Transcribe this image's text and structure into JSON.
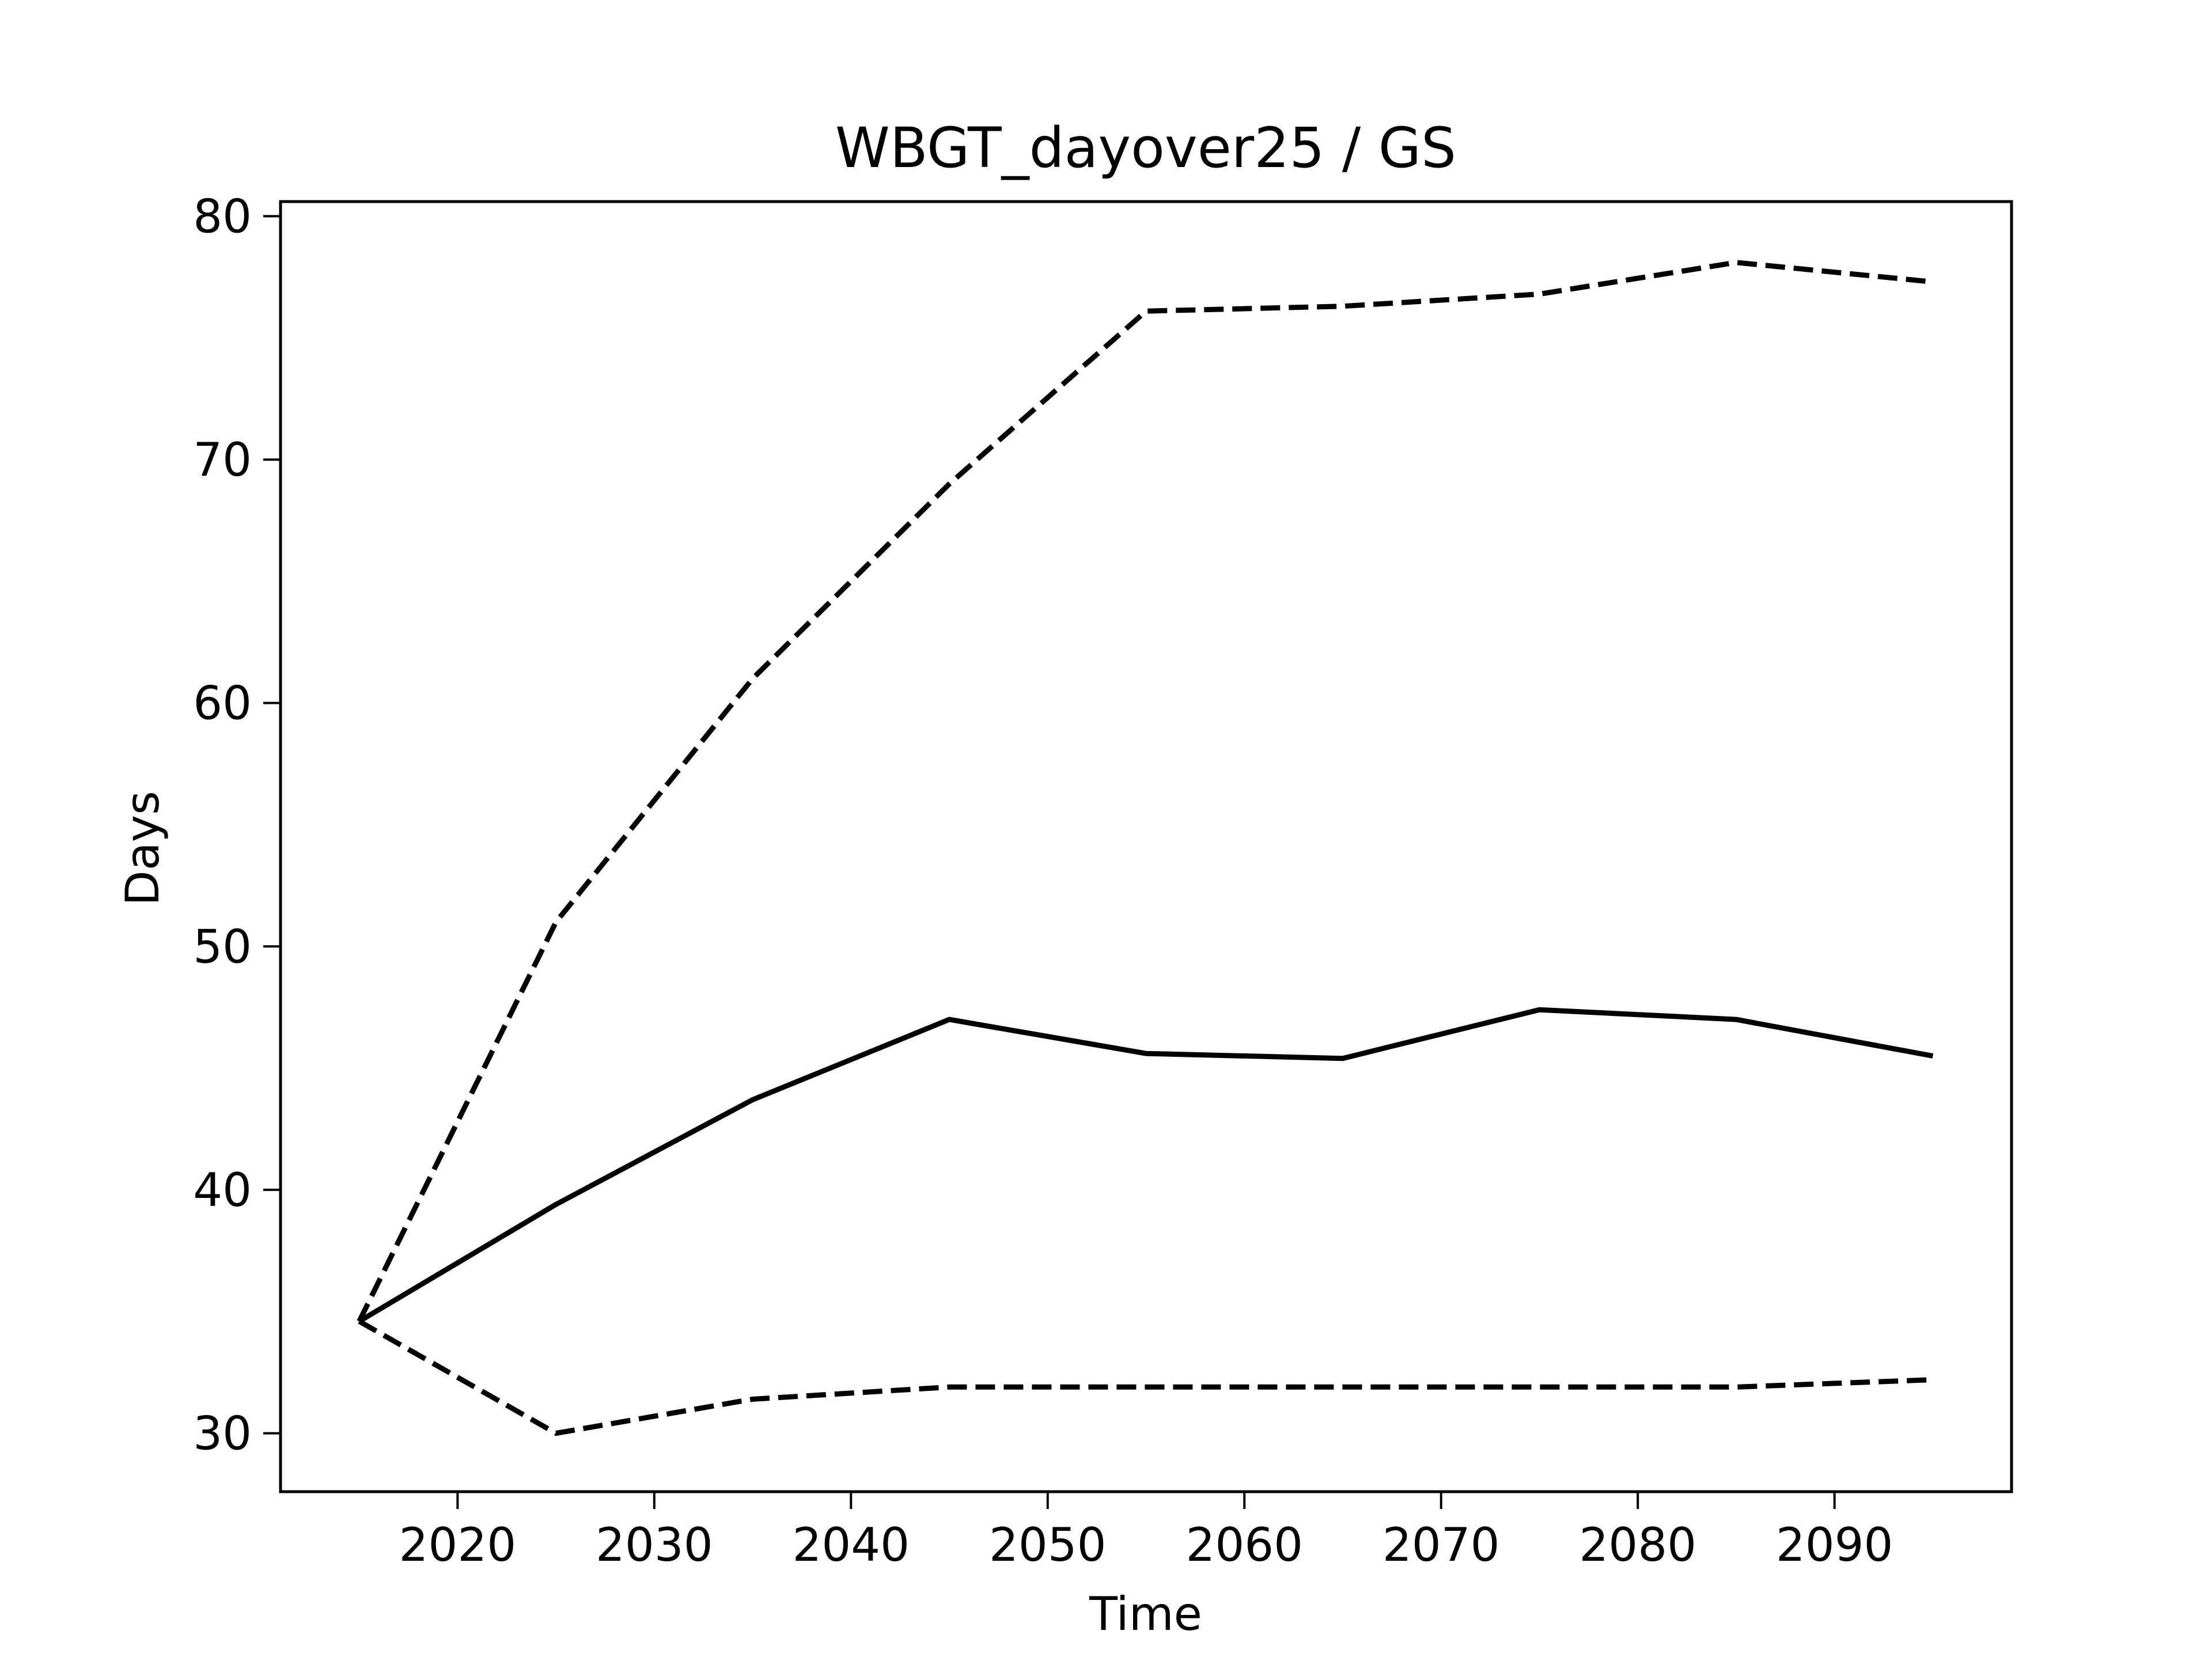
{
  "chart_data": {
    "type": "line",
    "title": "WBGT_dayover25 / GS",
    "xlabel": "Time",
    "ylabel": "Days",
    "xlim": [
      2011,
      2099
    ],
    "ylim": [
      27.6,
      80.6
    ],
    "xticks": [
      2020,
      2030,
      2040,
      2050,
      2060,
      2070,
      2080,
      2090
    ],
    "yticks": [
      30,
      40,
      50,
      60,
      70,
      80
    ],
    "grid": false,
    "legend": false,
    "line_color": "#000000",
    "x": [
      2015,
      2025,
      2035,
      2045,
      2055,
      2065,
      2075,
      2085,
      2095
    ],
    "series": [
      {
        "style": "dashed",
        "values": [
          34.6,
          51.0,
          61.0,
          69.0,
          76.1,
          76.3,
          76.8,
          78.1,
          77.3
        ]
      },
      {
        "style": "solid",
        "values": [
          34.6,
          39.4,
          43.7,
          47.0,
          45.6,
          45.4,
          47.4,
          47.0,
          45.5
        ]
      },
      {
        "style": "dashed",
        "values": [
          34.6,
          30.0,
          31.4,
          31.9,
          31.9,
          31.9,
          31.9,
          31.9,
          32.2
        ]
      }
    ]
  }
}
